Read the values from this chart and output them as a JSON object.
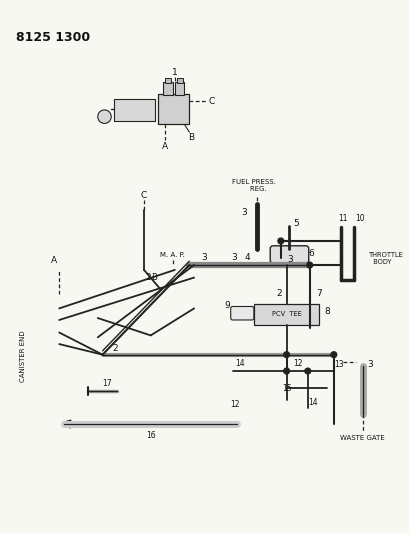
{
  "bg_color": "#f8f8f3",
  "line_color": "#222222",
  "text_color": "#111111",
  "fig_width": 4.1,
  "fig_height": 5.33,
  "dpi": 100,
  "title": "8125 1300",
  "labels": {
    "fuel_press_reg": "FUEL PRESS.\n    REG.",
    "throttle_body": "THROTTLE\n  BODY",
    "waste_gate": "WASTE GATE",
    "canister_end": "CANISTER END",
    "map": "M. A. P.",
    "pcv_tee": "PCV  TEE"
  }
}
